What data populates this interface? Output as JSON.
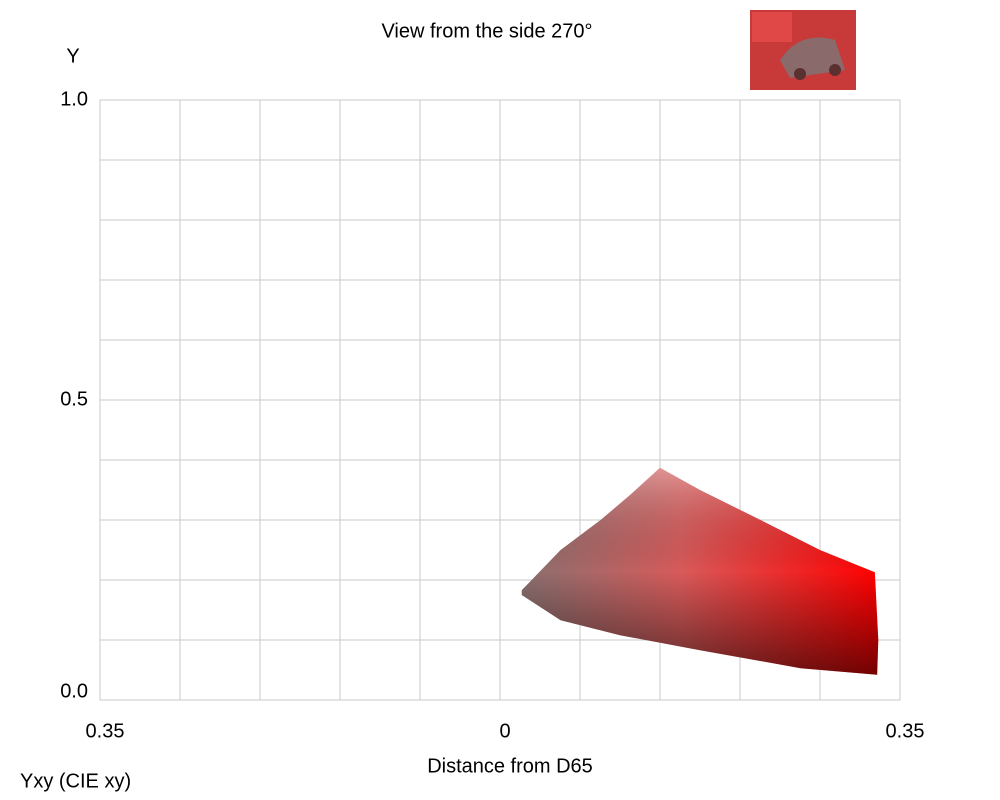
{
  "chart_data": {
    "type": "area",
    "title": "View from the side 270°",
    "y_label": "Y",
    "x_label": "Distance from D65",
    "corner_label": "Yxy (CIE xy)",
    "xlim": [
      -0.35,
      0.35
    ],
    "ylim": [
      0,
      1
    ],
    "xticks": [
      {
        "value": -0.35,
        "label": "0.35"
      },
      0,
      0.35
    ],
    "yticks": [
      {
        "value": 0,
        "label": "0.0"
      },
      {
        "value": 0.5,
        "label": "0.5"
      },
      {
        "value": 1,
        "label": "1.0"
      }
    ],
    "grid": true,
    "grid_divisions": [
      10,
      10
    ],
    "x": [
      0.019,
      0.053,
      0.088,
      0.114,
      0.14,
      0.175,
      0.228,
      0.28,
      0.328,
      0.331,
      0.33,
      0.263,
      0.175,
      0.105,
      0.053,
      0.019
    ],
    "y": [
      0.183,
      0.25,
      0.3,
      0.342,
      0.387,
      0.35,
      0.3,
      0.25,
      0.213,
      0.1,
      0.042,
      0.053,
      0.083,
      0.108,
      0.133,
      0.175
    ]
  }
}
